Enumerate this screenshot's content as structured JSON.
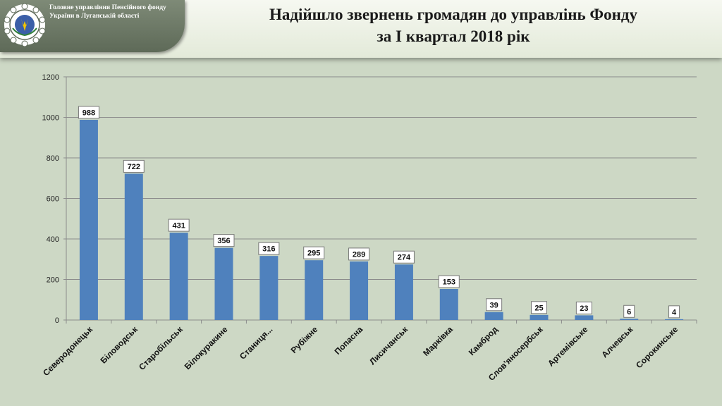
{
  "header": {
    "org_name": "Головне управління Пенсійного фонду України в Луганській області",
    "title_line_1": "Надійшло звернень громадян до управлінь Фонду",
    "title_line_2": "за І квартал 2018 рік"
  },
  "colors": {
    "bar": "#4f81bd",
    "background": "#cdd8c5",
    "header_panel": "#6b7865"
  },
  "chart_data": {
    "type": "bar",
    "categories": [
      "Северодонецьк",
      "Біловодськ",
      "Старобільськ",
      "Білокуракине",
      "Станиця...",
      "Рубіжне",
      "Попасна",
      "Лисичанськ",
      "Марківка",
      "Камброд",
      "Слов'яносербськ",
      "Артемівське",
      "Алчевськ",
      "Сорокинське"
    ],
    "values": [
      988,
      722,
      431,
      356,
      316,
      295,
      289,
      274,
      153,
      39,
      25,
      23,
      6,
      4
    ],
    "ylim": [
      0,
      1200
    ],
    "yticks": [
      0,
      200,
      400,
      600,
      800,
      1000,
      1200
    ],
    "grid": true,
    "legend": "none",
    "data_labels": true
  }
}
